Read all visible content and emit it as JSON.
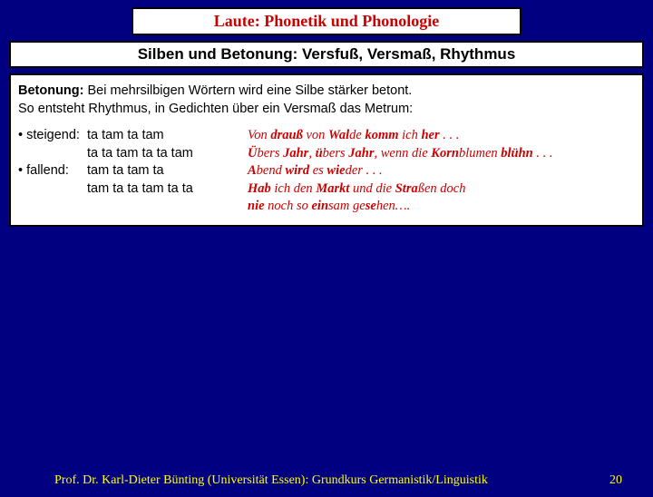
{
  "colors": {
    "background": "#000080",
    "accent_red": "#cc0000",
    "footer_yellow": "#ffff00",
    "box_bg": "#ffffff",
    "box_border": "#000000"
  },
  "title": "Laute: Phonetik und Phonologie",
  "subtitle": "Silben und  Betonung: Versfuß, Versmaß, Rhythmus",
  "intro": {
    "line1_prefix_bold": "Betonung:",
    "line1_rest": " Bei mehrsilbigen Wörtern wird eine Silbe stärker betont.",
    "line2": "So entsteht Rhythmus, in Gedichten über ein Versmaß das Metrum:"
  },
  "patterns": [
    {
      "label": "• steigend:",
      "value": "ta tam ta tam"
    },
    {
      "label": "",
      "value": "ta ta tam ta ta tam"
    },
    {
      "label": "• fallend:",
      "value": "tam ta tam ta"
    },
    {
      "label": "",
      "value": "tam ta ta tam ta ta"
    }
  ],
  "examples": [
    {
      "segments": [
        {
          "t": "Von ",
          "b": false
        },
        {
          "t": "drauß ",
          "b": true
        },
        {
          "t": "von ",
          "b": false
        },
        {
          "t": "Wal",
          "b": true
        },
        {
          "t": "de ",
          "b": false
        },
        {
          "t": "komm ",
          "b": true
        },
        {
          "t": "ich ",
          "b": false
        },
        {
          "t": "her",
          "b": true
        },
        {
          "t": " . . .",
          "b": false
        }
      ]
    },
    {
      "segments": [
        {
          "t": "Ü",
          "b": true
        },
        {
          "t": "bers ",
          "b": false
        },
        {
          "t": "Jahr",
          "b": true
        },
        {
          "t": ", ",
          "b": false
        },
        {
          "t": "ü",
          "b": true
        },
        {
          "t": "bers ",
          "b": false
        },
        {
          "t": "Jahr",
          "b": true
        },
        {
          "t": ", wenn die ",
          "b": false
        },
        {
          "t": "Korn",
          "b": true
        },
        {
          "t": "blumen ",
          "b": false
        },
        {
          "t": "blühn",
          "b": true
        },
        {
          "t": " . . .",
          "b": false
        }
      ]
    },
    {
      "segments": [
        {
          "t": "A",
          "b": true
        },
        {
          "t": "bend ",
          "b": false
        },
        {
          "t": "wird ",
          "b": true
        },
        {
          "t": "es ",
          "b": false
        },
        {
          "t": "wie",
          "b": true
        },
        {
          "t": "der . . .",
          "b": false
        }
      ]
    },
    {
      "segments": [
        {
          "t": "Hab ",
          "b": true
        },
        {
          "t": "ich den ",
          "b": false
        },
        {
          "t": "Markt ",
          "b": true
        },
        {
          "t": "und die  ",
          "b": false
        },
        {
          "t": "Stra",
          "b": true
        },
        {
          "t": "ßen doch",
          "b": false
        }
      ]
    },
    {
      "segments": [
        {
          "t": " nie ",
          "b": true
        },
        {
          "t": "noch so ",
          "b": false
        },
        {
          "t": "ein",
          "b": true
        },
        {
          "t": "sam ge",
          "b": false
        },
        {
          "t": "se",
          "b": true
        },
        {
          "t": "hen….",
          "b": false
        }
      ]
    }
  ],
  "footer": "Prof. Dr. Karl-Dieter Bünting (Universität Essen): Grundkurs Germanistik/Linguistik",
  "page_number": "20"
}
